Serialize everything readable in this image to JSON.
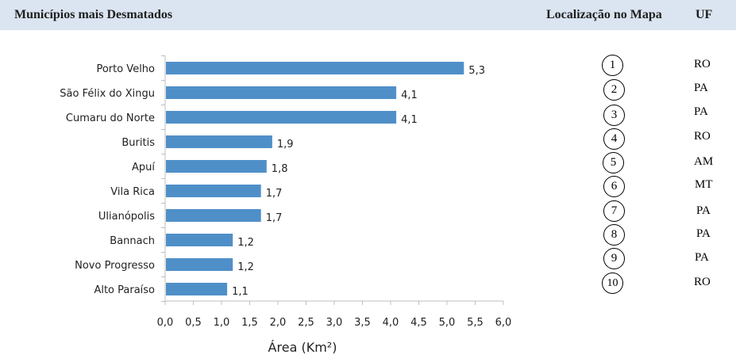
{
  "header": {
    "title": "Municípios mais Desmatados",
    "map_location_label": "Localização no Mapa",
    "uf_label": "UF"
  },
  "colors": {
    "header_bg": "#dbe5f1",
    "bar": "#4f8fc8",
    "axis": "#bfbfbf"
  },
  "chart_data": {
    "type": "bar",
    "orientation": "horizontal",
    "categories": [
      "Porto Velho",
      "São Félix do Xingu",
      "Cumaru do Norte",
      "Buritis",
      "Apuí",
      "Vila Rica",
      "Ulianópolis",
      "Bannach",
      "Novo Progresso",
      "Alto Paraíso"
    ],
    "values": [
      5.3,
      4.1,
      4.1,
      1.9,
      1.8,
      1.7,
      1.7,
      1.2,
      1.2,
      1.1
    ],
    "value_labels": [
      "5,3",
      "4,1",
      "4,1",
      "1,9",
      "1,8",
      "1,7",
      "1,7",
      "1,2",
      "1,2",
      "1,1"
    ],
    "xlabel": "Área (Km²)",
    "xlim": [
      0,
      6
    ],
    "xticks": [
      "0,0",
      "0,5",
      "1,0",
      "1,5",
      "2,0",
      "2,5",
      "3,0",
      "3,5",
      "4,0",
      "4,5",
      "5,0",
      "5,5",
      "6,0"
    ],
    "grid": false
  },
  "map_locations": [
    {
      "number": "1",
      "uf": "RO"
    },
    {
      "number": "2",
      "uf": "PA"
    },
    {
      "number": "3",
      "uf": "PA"
    },
    {
      "number": "4",
      "uf": "RO"
    },
    {
      "number": "5",
      "uf": "AM"
    },
    {
      "number": "6",
      "uf": "MT"
    },
    {
      "number": "7",
      "uf": "PA"
    },
    {
      "number": "8",
      "uf": "PA"
    },
    {
      "number": "9",
      "uf": "PA"
    },
    {
      "number": "10",
      "uf": "RO"
    }
  ]
}
